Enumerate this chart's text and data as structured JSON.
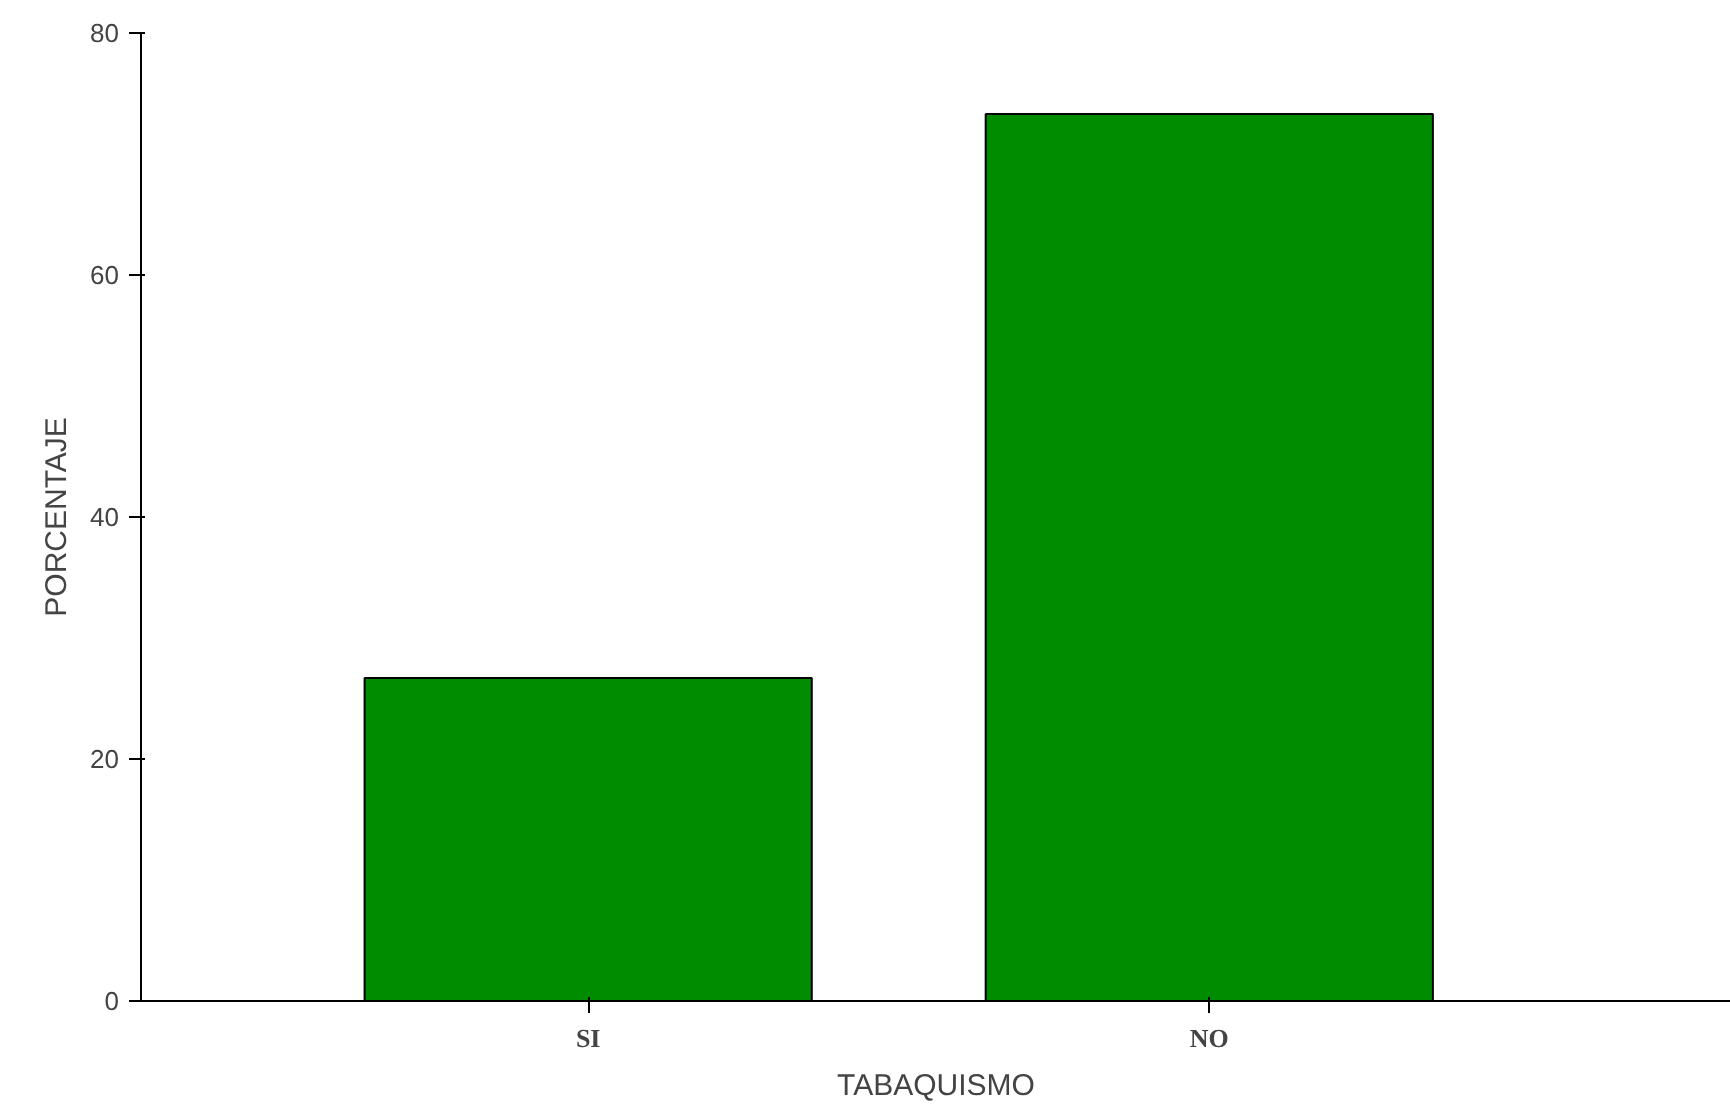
{
  "chart_data": {
    "type": "bar",
    "xlabel": "TABAQUISMO",
    "ylabel": "PORCENTAJE",
    "categories": [
      "SI",
      "NO"
    ],
    "values": [
      26.7,
      73.3
    ],
    "color": "#008c00",
    "ylim": [
      0,
      80
    ],
    "yticks": [
      0,
      20,
      40,
      60,
      80
    ],
    "grid": false
  }
}
